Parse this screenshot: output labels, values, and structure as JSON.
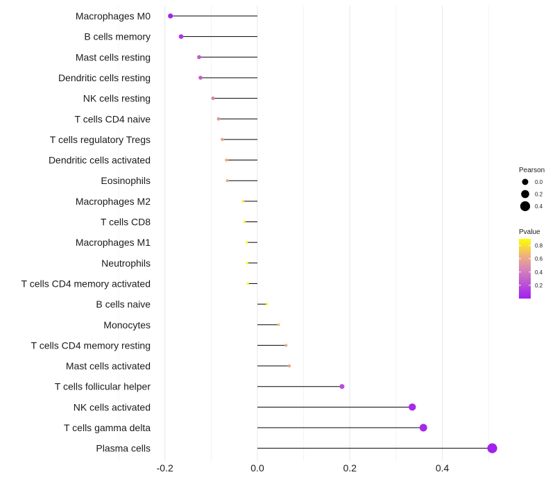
{
  "chart_data": {
    "type": "lollipop",
    "title": "",
    "xlabel": "",
    "ylabel": "",
    "xlim": [
      -0.2,
      0.5
    ],
    "xticks": [
      -0.2,
      0.0,
      0.2,
      0.4
    ],
    "xtick_labels": [
      "-0.2",
      "0.0",
      "0.2",
      "0.4"
    ],
    "grid": true,
    "categories": [
      "Macrophages M0",
      "B cells memory",
      "Mast cells resting",
      "Dendritic cells resting",
      "NK cells resting",
      "T cells CD4 naive",
      "T cells regulatory  Tregs ",
      "Dendritic cells activated",
      "Eosinophils",
      "Macrophages M2",
      "T cells CD8",
      "Macrophages M1",
      "Neutrophils",
      "T cells CD4 memory activated",
      "B cells naive",
      "Monocytes",
      "T cells CD4 memory resting",
      "Mast cells activated",
      "T cells follicular helper",
      "NK cells activated",
      "T cells gamma delta",
      "Plasma cells"
    ],
    "cor": [
      -0.188,
      -0.165,
      -0.126,
      -0.123,
      -0.096,
      -0.084,
      -0.076,
      -0.067,
      -0.065,
      -0.031,
      -0.028,
      -0.023,
      -0.022,
      -0.021,
      0.021,
      0.046,
      0.062,
      0.069,
      0.183,
      0.335,
      0.359,
      0.508
    ],
    "pvalue": [
      0.02,
      0.12,
      0.28,
      0.3,
      0.45,
      0.55,
      0.62,
      0.66,
      0.66,
      0.86,
      0.88,
      0.9,
      0.9,
      0.9,
      0.89,
      0.78,
      0.66,
      0.62,
      0.22,
      0.05,
      0.05,
      0.01
    ],
    "legend": {
      "size_title": "Pearson",
      "size_values": [
        0.0,
        0.2,
        0.4
      ],
      "size_labels": [
        "0.0",
        "0.2",
        "0.4"
      ],
      "color_title": "Pvalue",
      "color_ticks": [
        0.2,
        0.4,
        0.6,
        0.8
      ],
      "color_labels": [
        "0.2",
        "0.4",
        "0.6",
        "0.8"
      ],
      "color_range": [
        0.0,
        0.9
      ],
      "placement": "right"
    },
    "colors": {
      "low": "#a020f0",
      "mid": "#e8a587",
      "high": "#ffff00",
      "segment": "#000000",
      "grid": "#ebebeb"
    }
  }
}
